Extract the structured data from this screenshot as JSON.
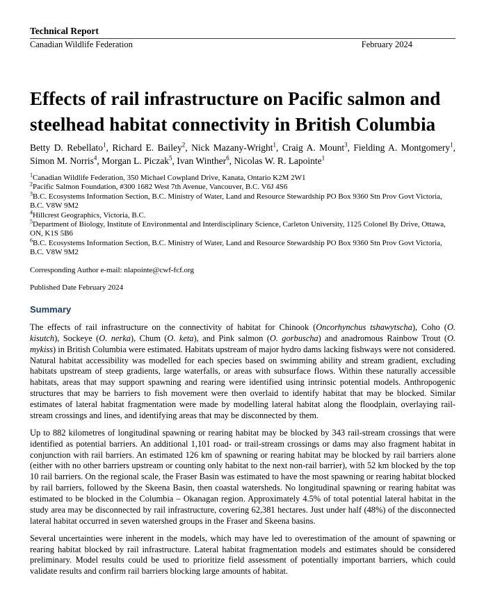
{
  "header": {
    "report_type": "Technical Report",
    "organization": "Canadian Wildlife Federation",
    "date": "February 2024"
  },
  "title": "Effects of rail infrastructure on Pacific salmon and steelhead habitat connectivity in British Columbia",
  "authors": [
    {
      "name": "Betty D. Rebellato",
      "affiliation_ref": "1"
    },
    {
      "name": "Richard E. Bailey",
      "affiliation_ref": "2"
    },
    {
      "name": "Nick Mazany-Wright",
      "affiliation_ref": "1"
    },
    {
      "name": "Craig A. Mount",
      "affiliation_ref": "3"
    },
    {
      "name": "Fielding A. Montgomery",
      "affiliation_ref": "1"
    },
    {
      "name": "Simon M. Norris",
      "affiliation_ref": "4"
    },
    {
      "name": "Morgan L. Piczak",
      "affiliation_ref": "5"
    },
    {
      "name": "Ivan Winther",
      "affiliation_ref": "6"
    },
    {
      "name": "Nicolas W. R. Lapointe",
      "affiliation_ref": "1"
    }
  ],
  "author_separator": ", ",
  "affiliations": [
    {
      "ref": "1",
      "text": "Canadian Wildlife Federation, 350 Michael Cowpland Drive, Kanata, Ontario K2M 2W1"
    },
    {
      "ref": "2",
      "text": "Pacific Salmon Foundation, #300 1682 West 7th Avenue, Vancouver, B.C. V6J 4S6"
    },
    {
      "ref": "3",
      "text": "B.C. Ecosystems Information Section, B.C. Ministry of Water, Land and Resource Stewardship PO Box 9360 Stn Prov Govt Victoria, B.C. V8W 9M2"
    },
    {
      "ref": "4",
      "text": "Hillcrest Geographics, Victoria, B.C."
    },
    {
      "ref": "5",
      "text": "Department of Biology, Institute of Environmental and Interdisciplinary Science, Carleton University, 1125 Colonel By Drive, Ottawa, ON, K1S 5B6"
    },
    {
      "ref": "6",
      "text": "B.C. Ecosystems Information Section, B.C. Ministry of Water, Land and Resource Stewardship PO Box 9360 Stn Prov Govt Victoria, B.C. V8W 9M2"
    }
  ],
  "corresponding_author": "Corresponding Author e-mail: nlapointe@cwf-fcf.org",
  "published_date": "Published Date February 2024",
  "summary": {
    "heading": "Summary",
    "paragraphs": [
      {
        "segments": [
          {
            "text": "The effects of rail infrastructure on the connectivity of habitat for Chinook ("
          },
          {
            "text": "Oncorhynchus tshawytscha",
            "italic": true
          },
          {
            "text": "), Coho ("
          },
          {
            "text": "O. kisutch",
            "italic": true
          },
          {
            "text": "), Sockeye ("
          },
          {
            "text": "O. nerka",
            "italic": true
          },
          {
            "text": "), Chum ("
          },
          {
            "text": "O. keta",
            "italic": true
          },
          {
            "text": "), and Pink salmon ("
          },
          {
            "text": "O. gorbuscha",
            "italic": true
          },
          {
            "text": ") and anadromous Rainbow Trout ("
          },
          {
            "text": "O. mykiss",
            "italic": true
          },
          {
            "text": ") in British Columbia were estimated. Habitats upstream of major hydro dams lacking fishways were not considered. Natural habitat accessibility was modelled for each species based on swimming ability and stream gradient, excluding habitats upstream of steep gradients, large waterfalls, or areas with subsurface flows. Within these naturally accessible habitats, areas that may support spawning and rearing were identified using intrinsic potential models. Anthropogenic structures that may be barriers to fish movement were then overlaid to identify habitat that may be blocked. Similar estimates of lateral habitat fragmentation were made by modelling lateral habitat along the floodplain, overlaying rail-stream crossings and lines, and identifying areas that may be disconnected by them."
          }
        ]
      },
      {
        "segments": [
          {
            "text": "Up to 882 kilometres of longitudinal spawning or rearing habitat may be blocked by 343 rail-stream crossings that were identified as potential barriers. An additional 1,101 road- or trail-stream crossings or dams may also fragment habitat in conjunction with rail barriers. An estimated 126 km of spawning or rearing habitat may be blocked by rail barriers alone (either with no other barriers upstream or counting only habitat to the next non-rail barrier), with 52 km blocked by the top 10 rail barriers. On the regional scale, the Fraser Basin was estimated to have the most spawning or rearing habitat blocked by rail barriers, followed by the Skeena Basin, then coastal watersheds. No longitudinal spawning or rearing habitat was estimated to be blocked in the Columbia – Okanagan region. Approximately 4.5% of total potential lateral habitat in the study area may be disconnected by rail infrastructure, covering 62,381 hectares. Just under half (48%) of the disconnected lateral habitat occurred in seven watershed groups in the Fraser and Skeena basins."
          }
        ]
      },
      {
        "segments": [
          {
            "text": "Several uncertainties were inherent in the models, which may have led to overestimation of the amount of spawning or rearing habitat blocked by rail infrastructure. Lateral habitat fragmentation models and estimates should be considered preliminary. Model results could be used to prioritize field assessment of potentially important barriers, which could validate results and confirm rail barriers blocking large amounts of habitat."
          }
        ]
      }
    ]
  },
  "colors": {
    "summary_heading": "#1f3a5f",
    "body_text": "#000000",
    "header_rule": "#3a3a3a"
  }
}
